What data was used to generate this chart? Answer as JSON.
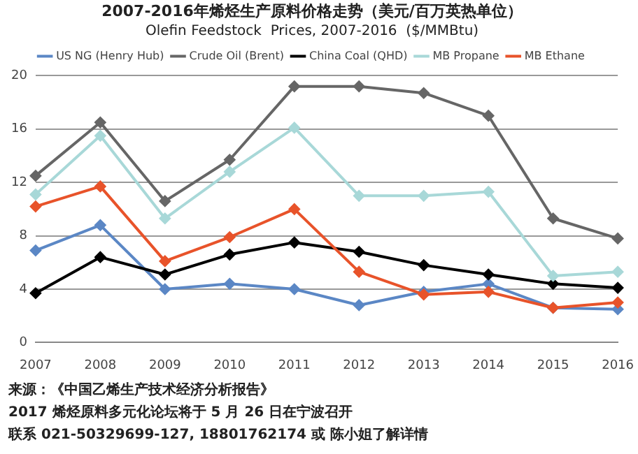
{
  "chart_data": {
    "type": "line",
    "title": "2007-2016年烯烃生产原料价格走势（美元/百万英热单位）",
    "subtitle": "Olefin Feedstock  Prices, 2007-2016  ($/MMBtu)",
    "categories": [
      "2007",
      "2008",
      "2009",
      "2010",
      "2011",
      "2012",
      "2013",
      "2014",
      "2015",
      "2016"
    ],
    "series": [
      {
        "name": "US NG (Henry Hub)",
        "color": "#5b87c5",
        "values": [
          6.9,
          8.8,
          4.0,
          4.4,
          4.0,
          2.8,
          3.8,
          4.4,
          2.6,
          2.5
        ]
      },
      {
        "name": "Crude Oil (Brent)",
        "color": "#666666",
        "values": [
          12.5,
          16.5,
          10.6,
          13.7,
          19.2,
          19.2,
          18.7,
          17.0,
          9.3,
          7.8
        ]
      },
      {
        "name": "China Coal (QHD)",
        "color": "#000000",
        "values": [
          3.7,
          6.4,
          5.1,
          6.6,
          7.5,
          6.8,
          5.8,
          5.1,
          4.4,
          4.1
        ]
      },
      {
        "name": "MB Propane",
        "color": "#a8d8d8",
        "values": [
          11.1,
          15.5,
          9.3,
          12.8,
          16.1,
          11.0,
          11.0,
          11.3,
          5.0,
          5.3
        ]
      },
      {
        "name": "MB Ethane",
        "color": "#e8532a",
        "values": [
          10.2,
          11.7,
          6.1,
          7.9,
          10.0,
          5.3,
          3.6,
          3.8,
          2.6,
          3.0
        ]
      }
    ],
    "ylim": [
      0,
      20
    ],
    "yticks": [
      0,
      4,
      8,
      12,
      16,
      20
    ],
    "grid": "y",
    "legend": "top",
    "marker": "diamond",
    "line_style": "solid",
    "annotations": [
      "来源：《中国乙烯生产技术经济分析报告》",
      "2017 烯烃原料多元化论坛将于 5 月 26 日在宁波召开",
      "联系 021-50329699-127, 18801762174 或 陈小姐了解详情"
    ]
  }
}
